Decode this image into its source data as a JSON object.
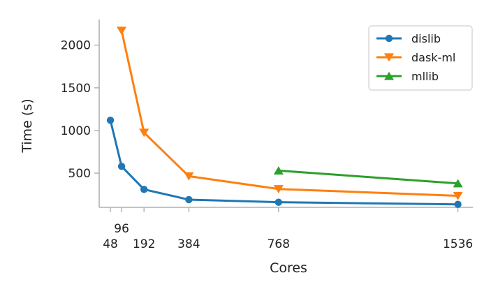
{
  "chart_data": {
    "type": "line",
    "xlabel": "Cores",
    "ylabel": "Time (s)",
    "x_ticks": [
      48,
      96,
      192,
      384,
      768,
      1536
    ],
    "y_ticks": [
      500,
      1000,
      1500,
      2000
    ],
    "xlim": [
      0,
      1600
    ],
    "ylim": [
      100,
      2300
    ],
    "legend_position": "top-right",
    "grid": false,
    "series": [
      {
        "name": "dislib",
        "color": "#1f77b4",
        "marker": "circle",
        "x": [
          48,
          96,
          192,
          384,
          768,
          1536
        ],
        "y": [
          1120,
          580,
          310,
          190,
          160,
          135
        ]
      },
      {
        "name": "dask-ml",
        "color": "#ff7f0e",
        "marker": "triangle-down",
        "x": [
          96,
          192,
          384,
          768,
          1536
        ],
        "y": [
          2170,
          975,
          465,
          315,
          235
        ]
      },
      {
        "name": "mllib",
        "color": "#2ca02c",
        "marker": "triangle-up",
        "x": [
          768,
          1536
        ],
        "y": [
          530,
          380
        ]
      }
    ]
  }
}
